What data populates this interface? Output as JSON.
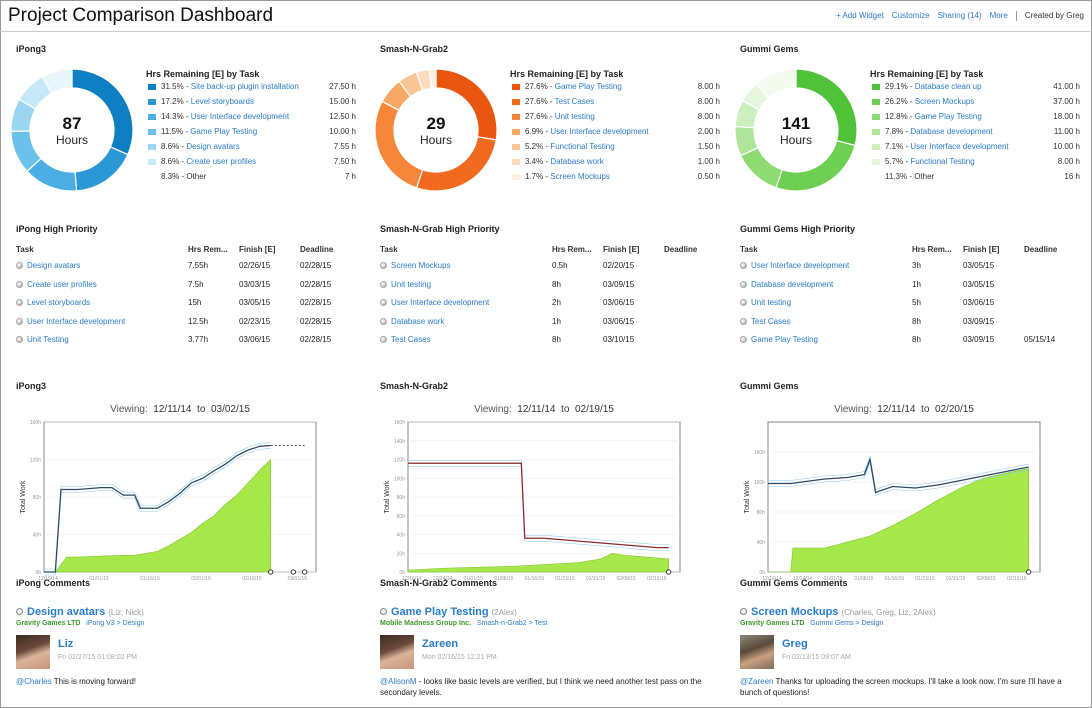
{
  "header": {
    "title": "Project Comparison Dashboard",
    "add_widget": "+ Add Widget",
    "customize": "Customize",
    "sharing": "Sharing (14)",
    "more": "More",
    "created_by": "Created by Greg"
  },
  "projects": [
    {
      "name": "iPong3",
      "hours": "87",
      "hours_unit": "Hours",
      "legend_title": "Hrs Remaining [E] by Task",
      "tasks": [
        {
          "pct": "31.5%",
          "name": "Site back-up plugin installation",
          "hrs": "27.50 h",
          "value": 27.5,
          "color": "#0d7fc2"
        },
        {
          "pct": "17.2%",
          "name": "Level storyboards",
          "hrs": "15.00 h",
          "value": 15.0,
          "color": "#2b97d4"
        },
        {
          "pct": "14.3%",
          "name": "User Interface development",
          "hrs": "12.50 h",
          "value": 12.5,
          "color": "#4aaee2"
        },
        {
          "pct": "11.5%",
          "name": "Game Play Testing",
          "hrs": "10.00 h",
          "value": 10.0,
          "color": "#6cc1ea"
        },
        {
          "pct": "8.6%",
          "name": "Design avatars",
          "hrs": "7.55 h",
          "value": 7.55,
          "color": "#9ad6f2"
        },
        {
          "pct": "8.6%",
          "name": "Create user profiles",
          "hrs": "7.50 h",
          "value": 7.5,
          "color": "#c6e8f8"
        },
        {
          "pct": "8.3%",
          "name": "Other",
          "hrs": "7 h",
          "value": 7.0,
          "color": "#e8f6fc",
          "other": true
        }
      ],
      "priority_title": "iPong High Priority",
      "priority_headers": [
        "Task",
        "Hrs Rem...",
        "Finish [E]",
        "Deadline"
      ],
      "priority_rows": [
        {
          "task": "Design avatars",
          "hrs": "7.55h",
          "finish": "02/26/15",
          "deadline": "02/28/15"
        },
        {
          "task": "Create user profiles",
          "hrs": "7.5h",
          "finish": "03/03/15",
          "deadline": "02/28/15"
        },
        {
          "task": "Level storyboards",
          "hrs": "15h",
          "finish": "03/05/15",
          "deadline": "02/28/15"
        },
        {
          "task": "User Interface development",
          "hrs": "12.5h",
          "finish": "02/23/15",
          "deadline": "02/28/15"
        },
        {
          "task": "Unit Testing",
          "hrs": "3.77h",
          "finish": "03/06/15",
          "deadline": "02/28/15"
        }
      ],
      "chart_title": "iPong3",
      "viewing_label": "Viewing:",
      "view_from": "12/11/14",
      "view_to_sep": "to",
      "view_to": "03/02/15",
      "comments_title": "iPong Comments",
      "comment": {
        "task": "Design avatars",
        "people": "(Liz, Nick)",
        "company": "Gravity Games LTD",
        "path": "iPong V3 > Design",
        "user": "Liz",
        "time": "Fri 02/27/15 01:08:02 PM",
        "mention": "@Charles",
        "text": " This is moving forward!"
      }
    },
    {
      "name": "Smash-N-Grab2",
      "hours": "29",
      "hours_unit": "Hours",
      "legend_title": "Hrs Remaining [E] by Task",
      "tasks": [
        {
          "pct": "27.6%",
          "name": "Game Play Testing",
          "hrs": "8.00 h",
          "value": 8.0,
          "color": "#e8560f"
        },
        {
          "pct": "27.6%",
          "name": "Test Cases",
          "hrs": "8.00 h",
          "value": 8.0,
          "color": "#f06b1f"
        },
        {
          "pct": "27.6%",
          "name": "Unit testing",
          "hrs": "8.00 h",
          "value": 8.0,
          "color": "#f5863a"
        },
        {
          "pct": "6.9%",
          "name": "User Interface development",
          "hrs": "2.00 h",
          "value": 2.0,
          "color": "#f8a865"
        },
        {
          "pct": "5.2%",
          "name": "Functional Testing",
          "hrs": "1.50 h",
          "value": 1.5,
          "color": "#fac595"
        },
        {
          "pct": "3.4%",
          "name": "Database work",
          "hrs": "1.00 h",
          "value": 1.0,
          "color": "#fcdcbd"
        },
        {
          "pct": "1.7%",
          "name": "Screen Mockups",
          "hrs": "0.50 h",
          "value": 0.5,
          "color": "#feeedf"
        }
      ],
      "priority_title": "Smash-N-Grab High Priority",
      "priority_headers": [
        "Task",
        "Hrs Rem...",
        "Finish [E]",
        "Deadline"
      ],
      "priority_rows": [
        {
          "task": "Screen Mockups",
          "hrs": "0.5h",
          "finish": "02/20/15",
          "deadline": ""
        },
        {
          "task": "Unit testing",
          "hrs": "8h",
          "finish": "03/09/15",
          "deadline": ""
        },
        {
          "task": "User Interface development",
          "hrs": "2h",
          "finish": "03/06/15",
          "deadline": ""
        },
        {
          "task": "Database work",
          "hrs": "1h",
          "finish": "03/06/15",
          "deadline": ""
        },
        {
          "task": "Test Cases",
          "hrs": "8h",
          "finish": "03/10/15",
          "deadline": ""
        }
      ],
      "chart_title": "Smash-N-Grab2",
      "viewing_label": "Viewing:",
      "view_from": "12/11/14",
      "view_to_sep": "to",
      "view_to": "02/19/15",
      "comments_title": "Smash-N-Grab2 Comments",
      "comment": {
        "task": "Game Play Testing",
        "people": "(2Alex)",
        "company": "Mobile Madness Group Inc.",
        "path": "Smash-n-Grab2 > Test",
        "user": "Zareen",
        "time": "Mon 02/16/15 12:21 PM",
        "mention": "@AlisonM",
        "text": " - looks like basic levels are verified, but I think we need another test pass on the secondary levels."
      }
    },
    {
      "name": "Gummi Gems",
      "hours": "141",
      "hours_unit": "Hours",
      "legend_title": "Hrs Remaining [E] by Task",
      "tasks": [
        {
          "pct": "29.1%",
          "name": "Database clean up",
          "hrs": "41.00 h",
          "value": 41.0,
          "color": "#4fc23a"
        },
        {
          "pct": "26.2%",
          "name": "Screen Mockups",
          "hrs": "37.00 h",
          "value": 37.0,
          "color": "#6dd052"
        },
        {
          "pct": "12.8%",
          "name": "Game Play Testing",
          "hrs": "18.00 h",
          "value": 18.0,
          "color": "#8edb72"
        },
        {
          "pct": "7.8%",
          "name": "Database development",
          "hrs": "11.00 h",
          "value": 11.0,
          "color": "#aee59a"
        },
        {
          "pct": "7.1%",
          "name": "User Interface development",
          "hrs": "10.00 h",
          "value": 10.0,
          "color": "#cdefc0"
        },
        {
          "pct": "5.7%",
          "name": "Functional Testing",
          "hrs": "8.00 h",
          "value": 8.0,
          "color": "#e4f7dc"
        },
        {
          "pct": "11.3%",
          "name": "Other",
          "hrs": "16 h",
          "value": 16.0,
          "color": "#f3fbef",
          "other": true
        }
      ],
      "priority_title": "Gummi Gems High Priority",
      "priority_headers": [
        "Task",
        "Hrs Rem...",
        "Finish [E]",
        "Deadline"
      ],
      "priority_rows": [
        {
          "task": "User Interface development",
          "hrs": "3h",
          "finish": "03/05/15",
          "deadline": ""
        },
        {
          "task": "Database development",
          "hrs": "1h",
          "finish": "03/05/15",
          "deadline": ""
        },
        {
          "task": "Unit testing",
          "hrs": "5h",
          "finish": "03/06/15",
          "deadline": ""
        },
        {
          "task": "Test Cases",
          "hrs": "8h",
          "finish": "03/09/15",
          "deadline": ""
        },
        {
          "task": "Game Play Testing",
          "hrs": "8h",
          "finish": "03/09/15",
          "deadline": "05/15/14"
        }
      ],
      "chart_title": "Gummi Gems",
      "viewing_label": "Viewing:",
      "view_from": "12/11/14",
      "view_to_sep": "to",
      "view_to": "02/20/15",
      "comments_title": "Gummi Gems Comments",
      "comment": {
        "task": "Screen Mockups",
        "people": "(Charles, Greg, Liz, 2Alex)",
        "company": "Gravity Games LTD",
        "path": "Gummi Gems > Design",
        "user": "Greg",
        "time": "Fri 02/13/15 09:07 AM",
        "mention": "@Zareen",
        "text": " Thanks for uploading the screen mockups. I'll take a look now. I'm sure I'll have a bunch of questions!"
      }
    }
  ],
  "chart_data": [
    {
      "type": "area",
      "title": "iPong3",
      "ylabel": "Total Work",
      "yticks": [
        "0h",
        "40h",
        "80h",
        "120h",
        "160h"
      ],
      "ylim": [
        0,
        160
      ],
      "xlim": [
        0,
        24
      ],
      "xticks": [
        "12/16/14",
        "01/01/15",
        "01/16/15",
        "02/01/15",
        "02/16/15",
        "03/01/15"
      ],
      "xtick_pos": [
        0,
        4.5,
        9,
        13.5,
        18,
        22
      ],
      "series": [
        {
          "kind": "area",
          "color": "#a6e84a",
          "x": [
            0,
            1,
            2,
            3,
            5,
            8,
            10,
            11,
            12,
            13,
            14,
            15,
            16,
            17,
            18,
            19,
            20
          ],
          "y": [
            0,
            0,
            16,
            16,
            17,
            18,
            22,
            28,
            35,
            42,
            52,
            60,
            72,
            82,
            95,
            108,
            120
          ]
        },
        {
          "kind": "line",
          "color": "#2e4a6a",
          "x": [
            0,
            1,
            1.5,
            3,
            5,
            6,
            7,
            8,
            8.5,
            10,
            11,
            12,
            13,
            14,
            15,
            16,
            17,
            18,
            19,
            20
          ],
          "y": [
            0,
            0,
            88,
            88,
            90,
            90,
            82,
            82,
            68,
            68,
            75,
            84,
            95,
            100,
            108,
            115,
            124,
            130,
            134,
            135
          ]
        },
        {
          "kind": "dash",
          "color": "#555",
          "x": [
            20,
            21,
            22,
            23
          ],
          "y": [
            135,
            135,
            135,
            135
          ]
        }
      ],
      "end_markers_x": [
        20,
        22,
        23
      ]
    },
    {
      "type": "area",
      "title": "Smash-N-Grab2",
      "ylabel": "Total Work",
      "yticks": [
        "0h",
        "20h",
        "40h",
        "60h",
        "80h",
        "100h",
        "120h",
        "140h",
        "160h"
      ],
      "ylim": [
        0,
        160
      ],
      "xlim": [
        0,
        24
      ],
      "xticks": [
        "12/16/14",
        "12/24/14",
        "01/01/15",
        "01/08/15",
        "01/16/15",
        "01/23/15",
        "01/31/15",
        "02/08/15",
        "02/15/15"
      ],
      "xtick_pos": [
        0,
        2.7,
        5.4,
        8.1,
        10.8,
        13.5,
        16.2,
        18.9,
        21.6
      ],
      "series": [
        {
          "kind": "area",
          "color": "#a6e84a",
          "x": [
            0,
            3,
            6,
            9,
            12,
            15,
            17,
            18,
            19,
            21,
            23
          ],
          "y": [
            2,
            4,
            5,
            6,
            8,
            10,
            14,
            20,
            18,
            16,
            14
          ]
        },
        {
          "kind": "line",
          "color": "#8b2a2a",
          "x": [
            0,
            3,
            6,
            9,
            10,
            10.3,
            12,
            14,
            16,
            18,
            20,
            22,
            23
          ],
          "y": [
            116,
            116,
            116,
            116,
            116,
            36,
            36,
            34,
            32,
            30,
            28,
            26,
            26
          ]
        }
      ],
      "end_markers_x": [
        23
      ]
    },
    {
      "type": "area",
      "title": "Gummi Gems",
      "ylabel": "Total Work",
      "yticks": [
        "0h",
        "40h",
        "80h",
        "120h",
        "160h"
      ],
      "ylim": [
        0,
        200
      ],
      "xlim": [
        0,
        24
      ],
      "xticks": [
        "12/16/14",
        "12/24/14",
        "01/01/15",
        "01/08/15",
        "01/16/15",
        "01/23/15",
        "01/31/15",
        "02/08/15",
        "02/15/15"
      ],
      "xtick_pos": [
        0,
        2.7,
        5.4,
        8.1,
        10.8,
        13.5,
        16.2,
        18.9,
        21.6
      ],
      "series": [
        {
          "kind": "area",
          "color": "#a6e84a",
          "x": [
            0,
            2,
            2.2,
            5,
            7,
            9,
            11,
            13,
            15,
            17,
            19,
            21,
            23
          ],
          "y": [
            0,
            0,
            32,
            32,
            40,
            48,
            62,
            78,
            96,
            112,
            125,
            132,
            138
          ]
        },
        {
          "kind": "line",
          "color": "#2e4a6a",
          "x": [
            0,
            2,
            3,
            5,
            7,
            8.5,
            9,
            9.5,
            11,
            13,
            15,
            17,
            19,
            21,
            23
          ],
          "y": [
            118,
            118,
            120,
            124,
            126,
            130,
            150,
            106,
            114,
            112,
            116,
            122,
            128,
            134,
            140
          ]
        }
      ],
      "end_markers_x": [
        23
      ]
    }
  ]
}
